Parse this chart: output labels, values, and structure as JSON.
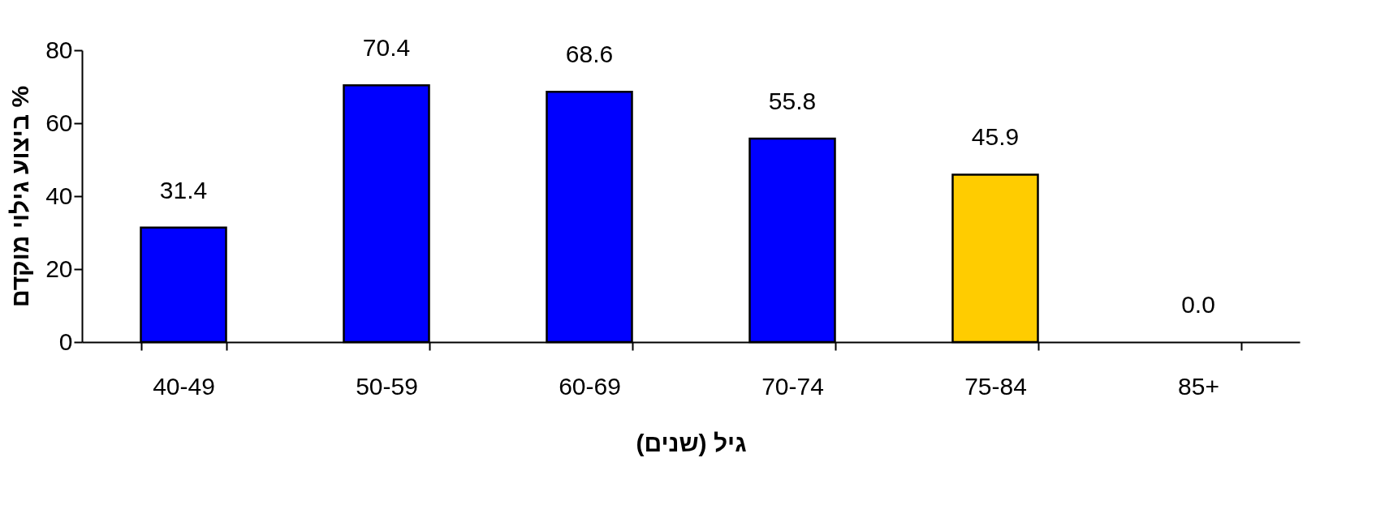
{
  "chart_data": {
    "type": "bar",
    "xlabel": "גיל (שנים)",
    "ylabel": "ביצוע גילוי מוקדם %",
    "categories": [
      "40-49",
      "50-59",
      "60-69",
      "70-74",
      "75-84",
      "85+"
    ],
    "values": [
      31.4,
      70.4,
      68.6,
      55.8,
      45.9,
      0.0
    ],
    "colors": [
      "#0000ff",
      "#0000ff",
      "#0000ff",
      "#0000ff",
      "#ffcc00",
      null
    ],
    "value_labels": [
      "31.4",
      "70.4",
      "68.6",
      "55.8",
      "45.9",
      "0.0"
    ],
    "ylim": [
      0,
      80
    ],
    "yticks": [
      0,
      20,
      40,
      60,
      80
    ],
    "grid": false
  }
}
